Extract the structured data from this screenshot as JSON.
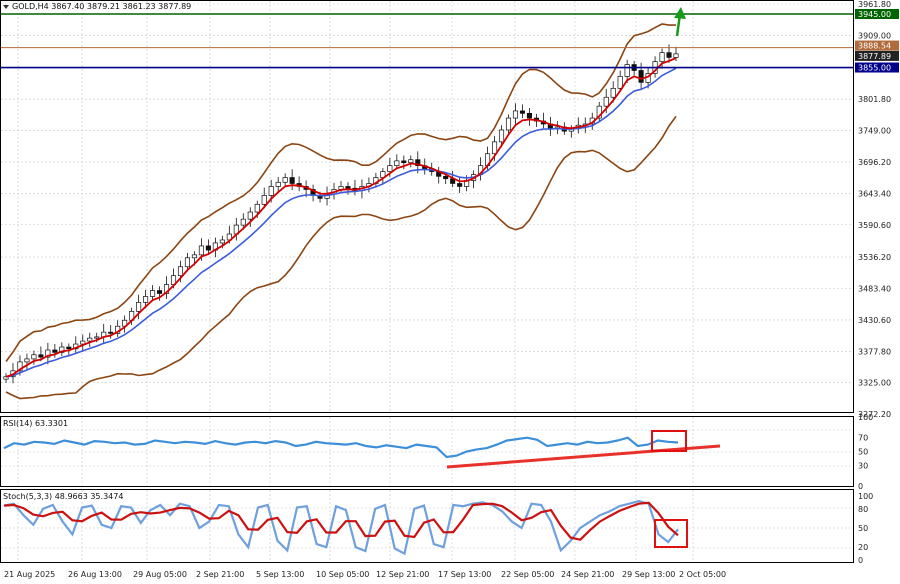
{
  "chart_header": "GOLD,H4  3867.40 3879.21 3861.23 3877.89",
  "colors": {
    "bollinger": "#8B4513",
    "ema_fast": "#d40000",
    "ema_slow": "#3b5bdb",
    "candles": "#111111",
    "green_level": "#006400",
    "blue_level": "#00008b",
    "brown_level": "#b06a3b",
    "rsi_line": "#3d8fd8",
    "stoch_main": "#6fa0de",
    "stoch_signal": "#cc1111",
    "trendline": "#e8312a",
    "highlight_box": "#e01010"
  },
  "chart_data": [
    {
      "type": "line",
      "panel": "price",
      "ylim": [
        3250,
        3970
      ],
      "y_ticks": [
        "3961.80",
        "3909.00",
        "3801.80",
        "3749.00",
        "3696.20",
        "3643.40",
        "3590.60",
        "3536.20",
        "3483.40",
        "3430.60",
        "3377.80",
        "3325.00",
        "3272.20"
      ],
      "x_ticks": [
        "21 Aug 2025",
        "26 Aug 13:00",
        "29 Aug 05:00",
        "2 Sep 21:00",
        "5 Sep 13:00",
        "10 Sep 05:00",
        "12 Sep 21:00",
        "17 Sep 13:00",
        "22 Sep 05:00",
        "24 Sep 21:00",
        "29 Sep 13:00",
        "2 Oct 05:00"
      ],
      "price_tags": [
        {
          "label": "3945.00",
          "value": 3945.0,
          "kind": "green"
        },
        {
          "label": "3888.54",
          "value": 3888.54,
          "kind": "brown"
        },
        {
          "label": "3877.89",
          "value": 3877.89,
          "kind": "current"
        },
        {
          "label": "3855.00",
          "value": 3855.0,
          "kind": "blue"
        }
      ],
      "close_path": [
        3335,
        3345,
        3360,
        3365,
        3372,
        3368,
        3380,
        3376,
        3385,
        3382,
        3390,
        3395,
        3400,
        3402,
        3410,
        3408,
        3420,
        3430,
        3445,
        3460,
        3470,
        3480,
        3475,
        3490,
        3505,
        3520,
        3535,
        3540,
        3555,
        3548,
        3560,
        3565,
        3575,
        3590,
        3600,
        3612,
        3625,
        3640,
        3655,
        3662,
        3670,
        3660,
        3655,
        3650,
        3640,
        3635,
        3642,
        3650,
        3655,
        3652,
        3648,
        3655,
        3660,
        3670,
        3680,
        3690,
        3698,
        3695,
        3700,
        3690,
        3685,
        3680,
        3672,
        3668,
        3660,
        3655,
        3665,
        3675,
        3690,
        3710,
        3730,
        3750,
        3770,
        3782,
        3778,
        3770,
        3765,
        3760,
        3752,
        3755,
        3748,
        3752,
        3758,
        3760,
        3770,
        3790,
        3805,
        3820,
        3840,
        3860,
        3850,
        3830,
        3845,
        3865,
        3880,
        3872,
        3878
      ]
    },
    {
      "type": "line",
      "panel": "rsi",
      "title": "RSI(14) 63.3301",
      "ylim": [
        0,
        100
      ],
      "levels": [
        "100",
        "70",
        "50",
        "30",
        "0"
      ]
    },
    {
      "type": "line",
      "panel": "stochastic",
      "title": "Stoch(5,3,3) 48.9663 35.3474",
      "ylim": [
        0,
        100
      ],
      "levels": [
        "100",
        "80",
        "50",
        "20",
        "0"
      ]
    }
  ]
}
